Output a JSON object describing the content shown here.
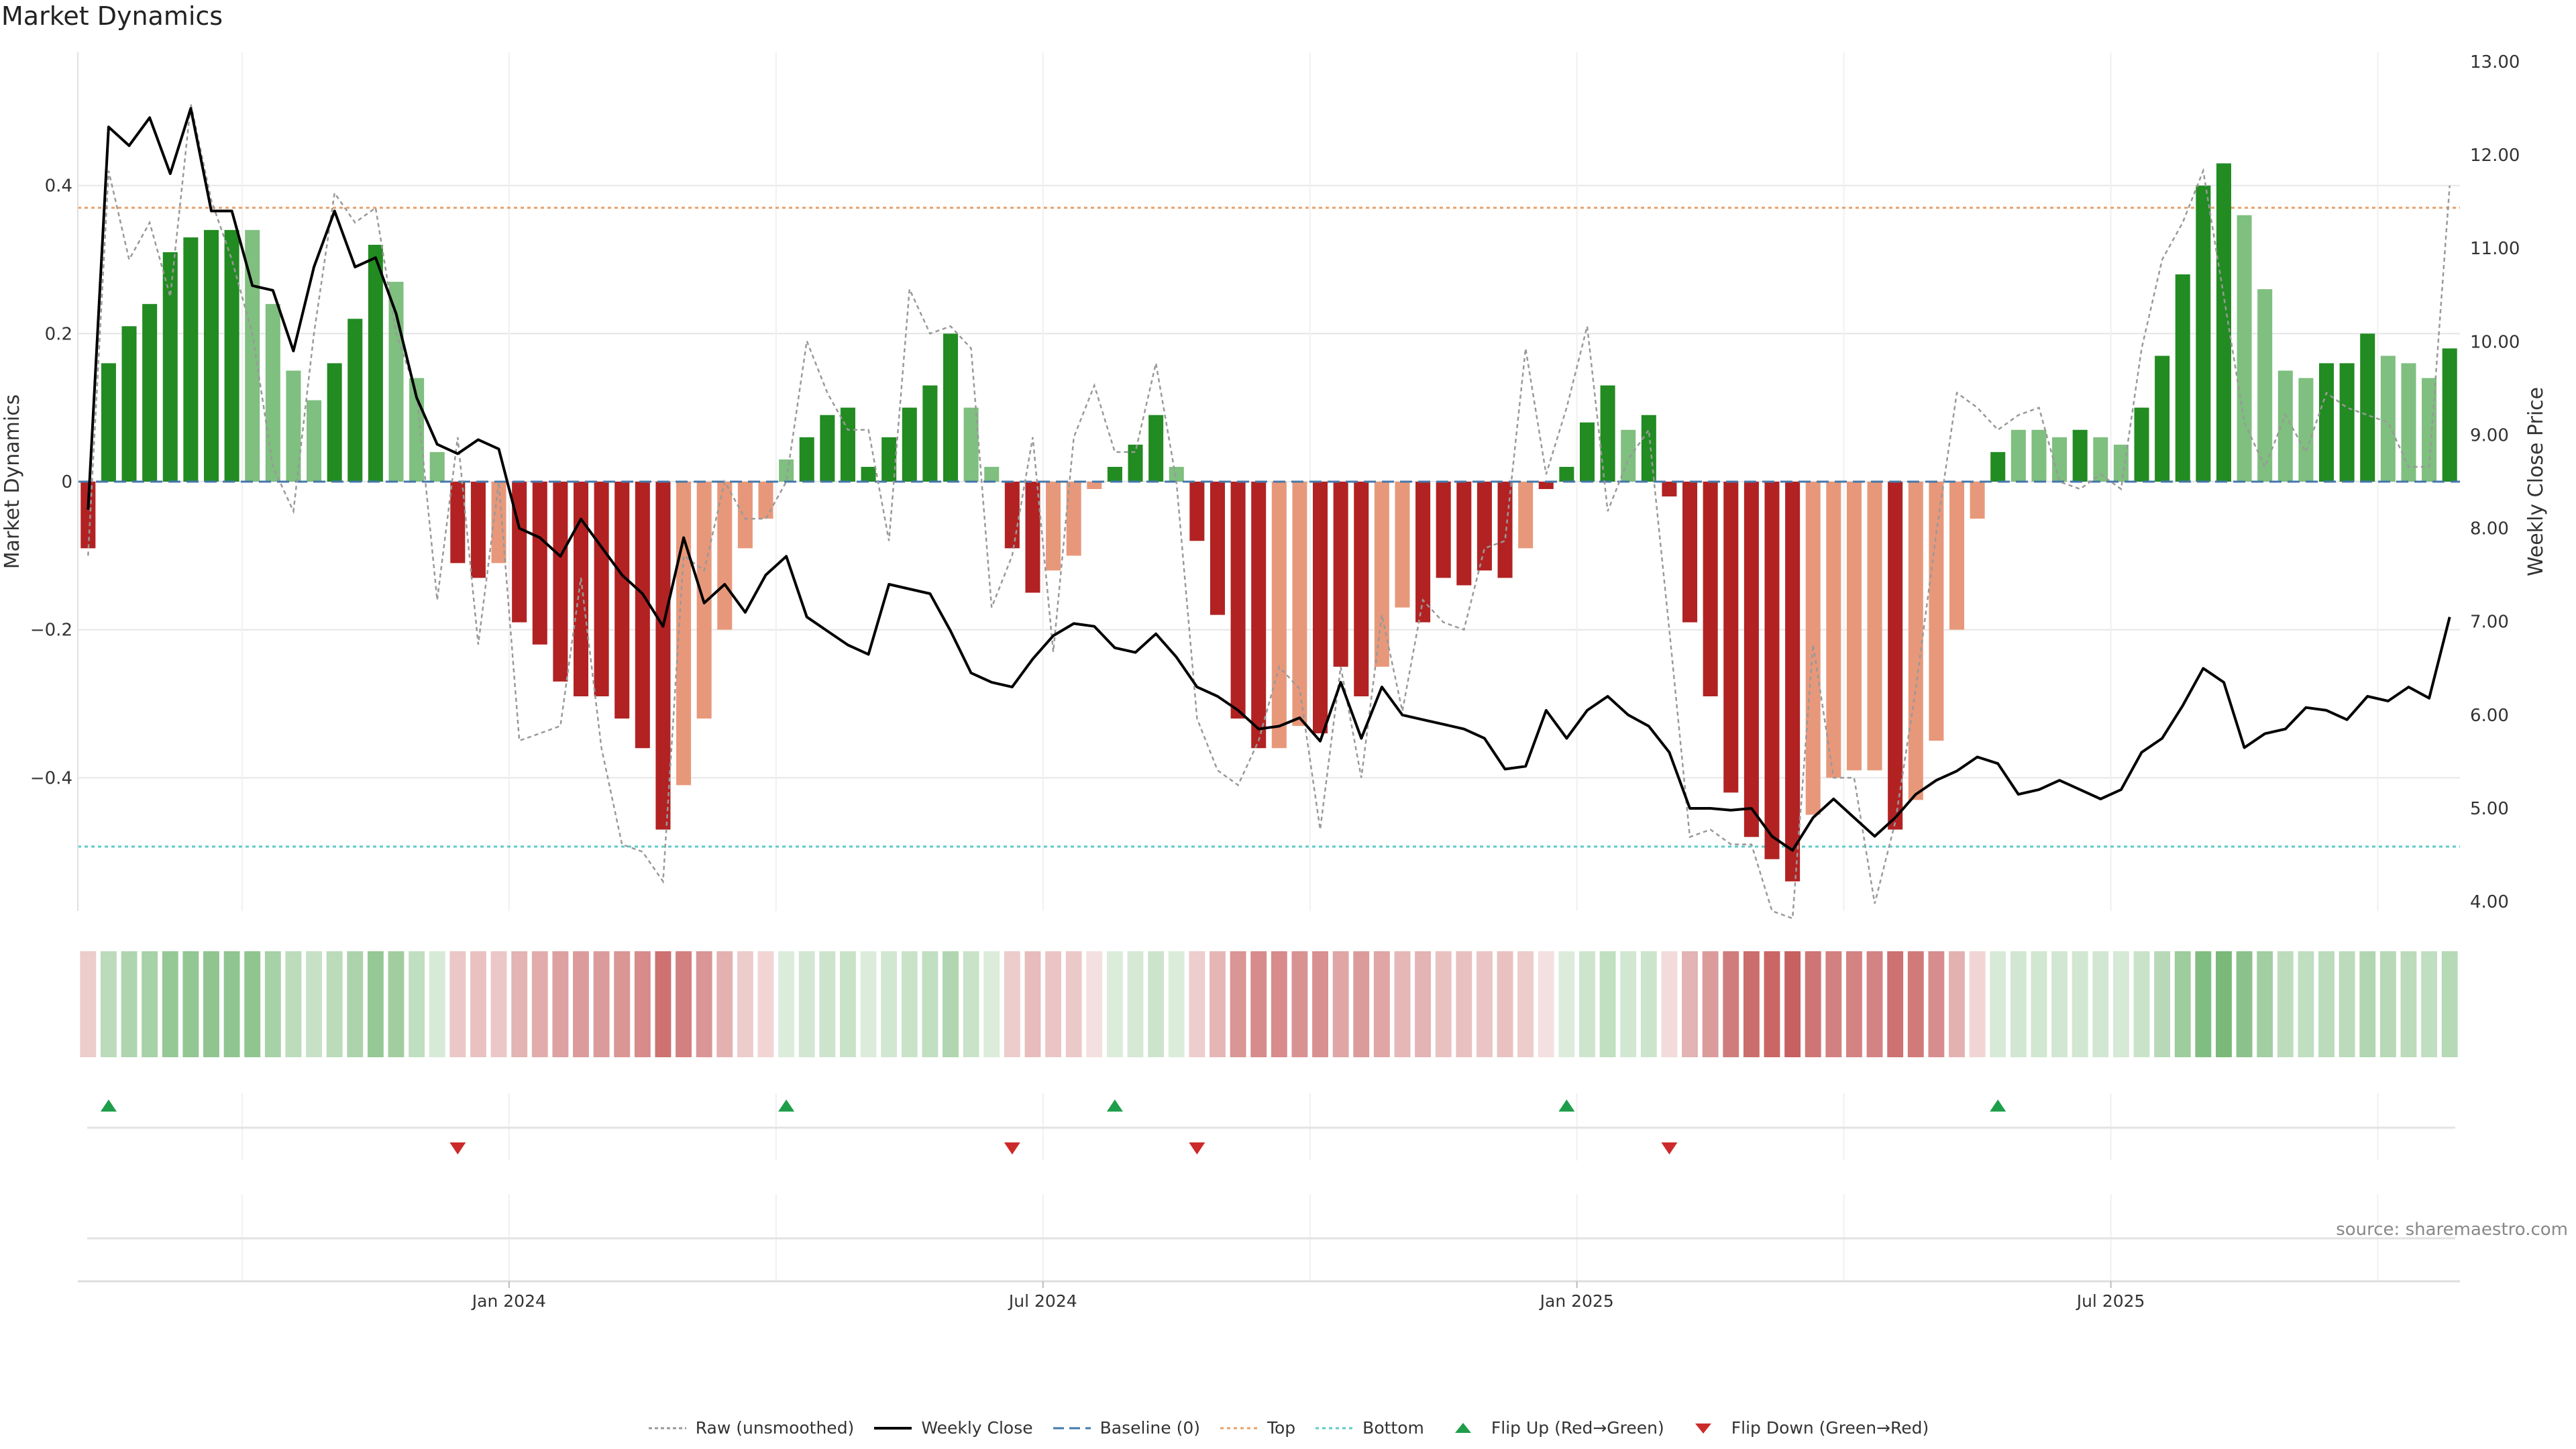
{
  "title": "Market Dynamics",
  "source_label": "source: sharemaestro.com",
  "legend": [
    {
      "key": "raw",
      "label": "Raw (unsmoothed)"
    },
    {
      "key": "close",
      "label": "Weekly Close"
    },
    {
      "key": "baseline",
      "label": "Baseline (0)"
    },
    {
      "key": "top",
      "label": "Top"
    },
    {
      "key": "bottom",
      "label": "Bottom"
    },
    {
      "key": "flip_up",
      "label": "Flip Up (Red→Green)"
    },
    {
      "key": "flip_down",
      "label": "Flip Down (Green→Red)"
    }
  ],
  "colors": {
    "green_strong": "#228b22",
    "green_light": "#7fbf7f",
    "red_strong": "#b22222",
    "red_light": "#e8987a",
    "close_line": "#000000",
    "raw_line": "#999999",
    "baseline": "#4477aa",
    "top": "#e8a16a",
    "bottom": "#5fc9c9",
    "flip_up": "#1e9e4a",
    "flip_down": "#cc2a2a",
    "grid": "#e6e6e6"
  },
  "chart_data": {
    "type": "bar",
    "title": "Market Dynamics",
    "ylabel": "Market Dynamics",
    "y2label": "Weekly Close Price",
    "ylim": [
      -0.58,
      0.58
    ],
    "y2lim": [
      3.9,
      13.1
    ],
    "yticks": [
      {
        "value": -0.4,
        "label": "−0.4"
      },
      {
        "value": -0.2,
        "label": "−0.2"
      },
      {
        "value": 0,
        "label": "0"
      },
      {
        "value": 0.2,
        "label": "0.2"
      },
      {
        "value": 0.4,
        "label": "0.4"
      }
    ],
    "y2ticks": [
      {
        "value": 4,
        "label": "4.00"
      },
      {
        "value": 5,
        "label": "5.00"
      },
      {
        "value": 6,
        "label": "6.00"
      },
      {
        "value": 7,
        "label": "7.00"
      },
      {
        "value": 8,
        "label": "8.00"
      },
      {
        "value": 9,
        "label": "9.00"
      },
      {
        "value": 10,
        "label": "10.00"
      },
      {
        "value": 11,
        "label": "11.00"
      },
      {
        "value": 12,
        "label": "12.00"
      },
      {
        "value": 13,
        "label": "13.00"
      }
    ],
    "xticks": [
      {
        "week": 21,
        "label": "Jan 2024"
      },
      {
        "week": 47,
        "label": "Jul 2024"
      },
      {
        "week": 73,
        "label": "Jan 2025"
      },
      {
        "week": 99,
        "label": "Jul 2025"
      }
    ],
    "week_grid": [
      8,
      21,
      34,
      47,
      60,
      73,
      86,
      99,
      112
    ],
    "top_level": 0.37,
    "bottom_level": -0.493,
    "baseline_level": 0,
    "values": [
      -0.09,
      0.16,
      0.21,
      0.24,
      0.31,
      0.33,
      0.34,
      0.34,
      0.34,
      0.24,
      0.15,
      0.11,
      0.16,
      0.22,
      0.32,
      0.27,
      0.14,
      0.04,
      -0.11,
      -0.13,
      -0.11,
      -0.19,
      -0.22,
      -0.27,
      -0.29,
      -0.29,
      -0.32,
      -0.36,
      -0.47,
      -0.41,
      -0.32,
      -0.2,
      -0.09,
      -0.05,
      0.03,
      0.06,
      0.09,
      0.1,
      0.02,
      0.06,
      0.1,
      0.13,
      0.2,
      0.1,
      0.02,
      -0.09,
      -0.15,
      -0.12,
      -0.1,
      -0.01,
      0.02,
      0.05,
      0.09,
      0.02,
      -0.08,
      -0.18,
      -0.32,
      -0.36,
      -0.36,
      -0.33,
      -0.34,
      -0.25,
      -0.29,
      -0.25,
      -0.17,
      -0.19,
      -0.13,
      -0.14,
      -0.12,
      -0.13,
      -0.09,
      -0.01,
      0.02,
      0.08,
      0.13,
      0.07,
      0.09,
      -0.02,
      -0.19,
      -0.29,
      -0.42,
      -0.48,
      -0.51,
      -0.54,
      -0.45,
      -0.4,
      -0.39,
      -0.39,
      -0.47,
      -0.43,
      -0.35,
      -0.2,
      -0.05,
      0.04,
      0.07,
      0.07,
      0.06,
      0.07,
      0.06,
      0.05,
      0.1,
      0.17,
      0.28,
      0.4,
      0.43,
      0.36,
      0.26,
      0.15,
      0.14,
      0.16,
      0.16,
      0.2,
      0.17,
      0.16,
      0.14,
      0.18
    ],
    "strong": [
      true,
      true,
      true,
      true,
      true,
      true,
      true,
      true,
      false,
      false,
      false,
      false,
      true,
      true,
      true,
      false,
      false,
      false,
      true,
      true,
      false,
      true,
      true,
      true,
      true,
      true,
      true,
      true,
      true,
      false,
      false,
      false,
      false,
      false,
      false,
      true,
      true,
      true,
      true,
      true,
      true,
      true,
      true,
      false,
      false,
      true,
      true,
      false,
      false,
      false,
      true,
      true,
      true,
      false,
      true,
      true,
      true,
      true,
      false,
      false,
      true,
      true,
      true,
      false,
      false,
      true,
      true,
      true,
      true,
      true,
      false,
      true,
      true,
      true,
      true,
      false,
      true,
      true,
      true,
      true,
      true,
      true,
      true,
      true,
      false,
      false,
      false,
      false,
      true,
      false,
      false,
      false,
      false,
      true,
      false,
      false,
      false,
      true,
      false,
      false,
      true,
      true,
      true,
      true,
      true,
      false,
      false,
      false,
      false,
      true,
      true,
      true,
      false,
      false,
      false,
      true
    ],
    "close": [
      8.2,
      12.3,
      12.1,
      12.4,
      11.8,
      12.5,
      11.4,
      11.4,
      10.6,
      10.55,
      9.9,
      10.8,
      11.4,
      10.8,
      10.9,
      10.3,
      9.4,
      8.9,
      8.8,
      8.95,
      8.85,
      8.0,
      7.9,
      7.7,
      8.1,
      7.8,
      7.5,
      7.3,
      6.95,
      7.9,
      7.2,
      7.4,
      7.1,
      7.5,
      7.7,
      7.05,
      6.9,
      6.75,
      6.65,
      7.4,
      7.35,
      7.3,
      6.9,
      6.45,
      6.35,
      6.3,
      6.6,
      6.85,
      6.98,
      6.95,
      6.72,
      6.67,
      6.87,
      6.62,
      6.3,
      6.2,
      6.05,
      5.85,
      5.88,
      5.97,
      5.72,
      6.35,
      5.75,
      6.3,
      6.0,
      5.95,
      5.9,
      5.85,
      5.75,
      5.42,
      5.45,
      6.05,
      5.75,
      6.05,
      6.2,
      6.0,
      5.88,
      5.6,
      5.0,
      5.0,
      4.98,
      5.0,
      4.7,
      4.55,
      4.9,
      5.1,
      4.9,
      4.7,
      4.9,
      5.15,
      5.3,
      5.4,
      5.55,
      5.48,
      5.15,
      5.2,
      5.3,
      5.2,
      5.1,
      5.2,
      5.6,
      5.75,
      6.1,
      6.5,
      6.35,
      5.65,
      5.8,
      5.85,
      6.08,
      6.05,
      5.95,
      6.2,
      6.15,
      6.3,
      6.18,
      7.05
    ],
    "raw": [
      -0.1,
      0.42,
      0.3,
      0.35,
      0.25,
      0.51,
      0.38,
      0.3,
      0.2,
      0.02,
      -0.04,
      0.2,
      0.39,
      0.35,
      0.37,
      0.2,
      0.12,
      -0.16,
      0.06,
      -0.22,
      0.0,
      -0.35,
      -0.34,
      -0.33,
      -0.13,
      -0.36,
      -0.49,
      -0.5,
      -0.54,
      -0.1,
      -0.12,
      0.0,
      -0.05,
      -0.05,
      0.0,
      0.19,
      0.12,
      0.07,
      0.07,
      -0.08,
      0.26,
      0.2,
      0.21,
      0.18,
      -0.17,
      -0.1,
      0.06,
      -0.23,
      0.06,
      0.13,
      0.04,
      0.04,
      0.16,
      0.0,
      -0.32,
      -0.39,
      -0.41,
      -0.35,
      -0.25,
      -0.28,
      -0.47,
      -0.25,
      -0.4,
      -0.18,
      -0.31,
      -0.16,
      -0.19,
      -0.2,
      -0.09,
      -0.08,
      0.18,
      0.01,
      0.1,
      0.21,
      -0.04,
      0.03,
      0.07,
      -0.2,
      -0.48,
      -0.47,
      -0.49,
      -0.49,
      -0.58,
      -0.59,
      -0.22,
      -0.4,
      -0.4,
      -0.57,
      -0.46,
      -0.28,
      -0.07,
      0.12,
      0.1,
      0.07,
      0.09,
      0.1,
      0.0,
      -0.01,
      0.01,
      -0.01,
      0.18,
      0.3,
      0.35,
      0.42,
      0.25,
      0.08,
      0.02,
      0.09,
      0.04,
      0.12,
      0.1,
      0.09,
      0.08,
      0.02,
      0.02,
      0.4
    ],
    "flips_up": [
      1,
      34,
      50,
      72,
      93
    ],
    "flips_down": [
      18,
      45,
      54,
      77
    ]
  }
}
